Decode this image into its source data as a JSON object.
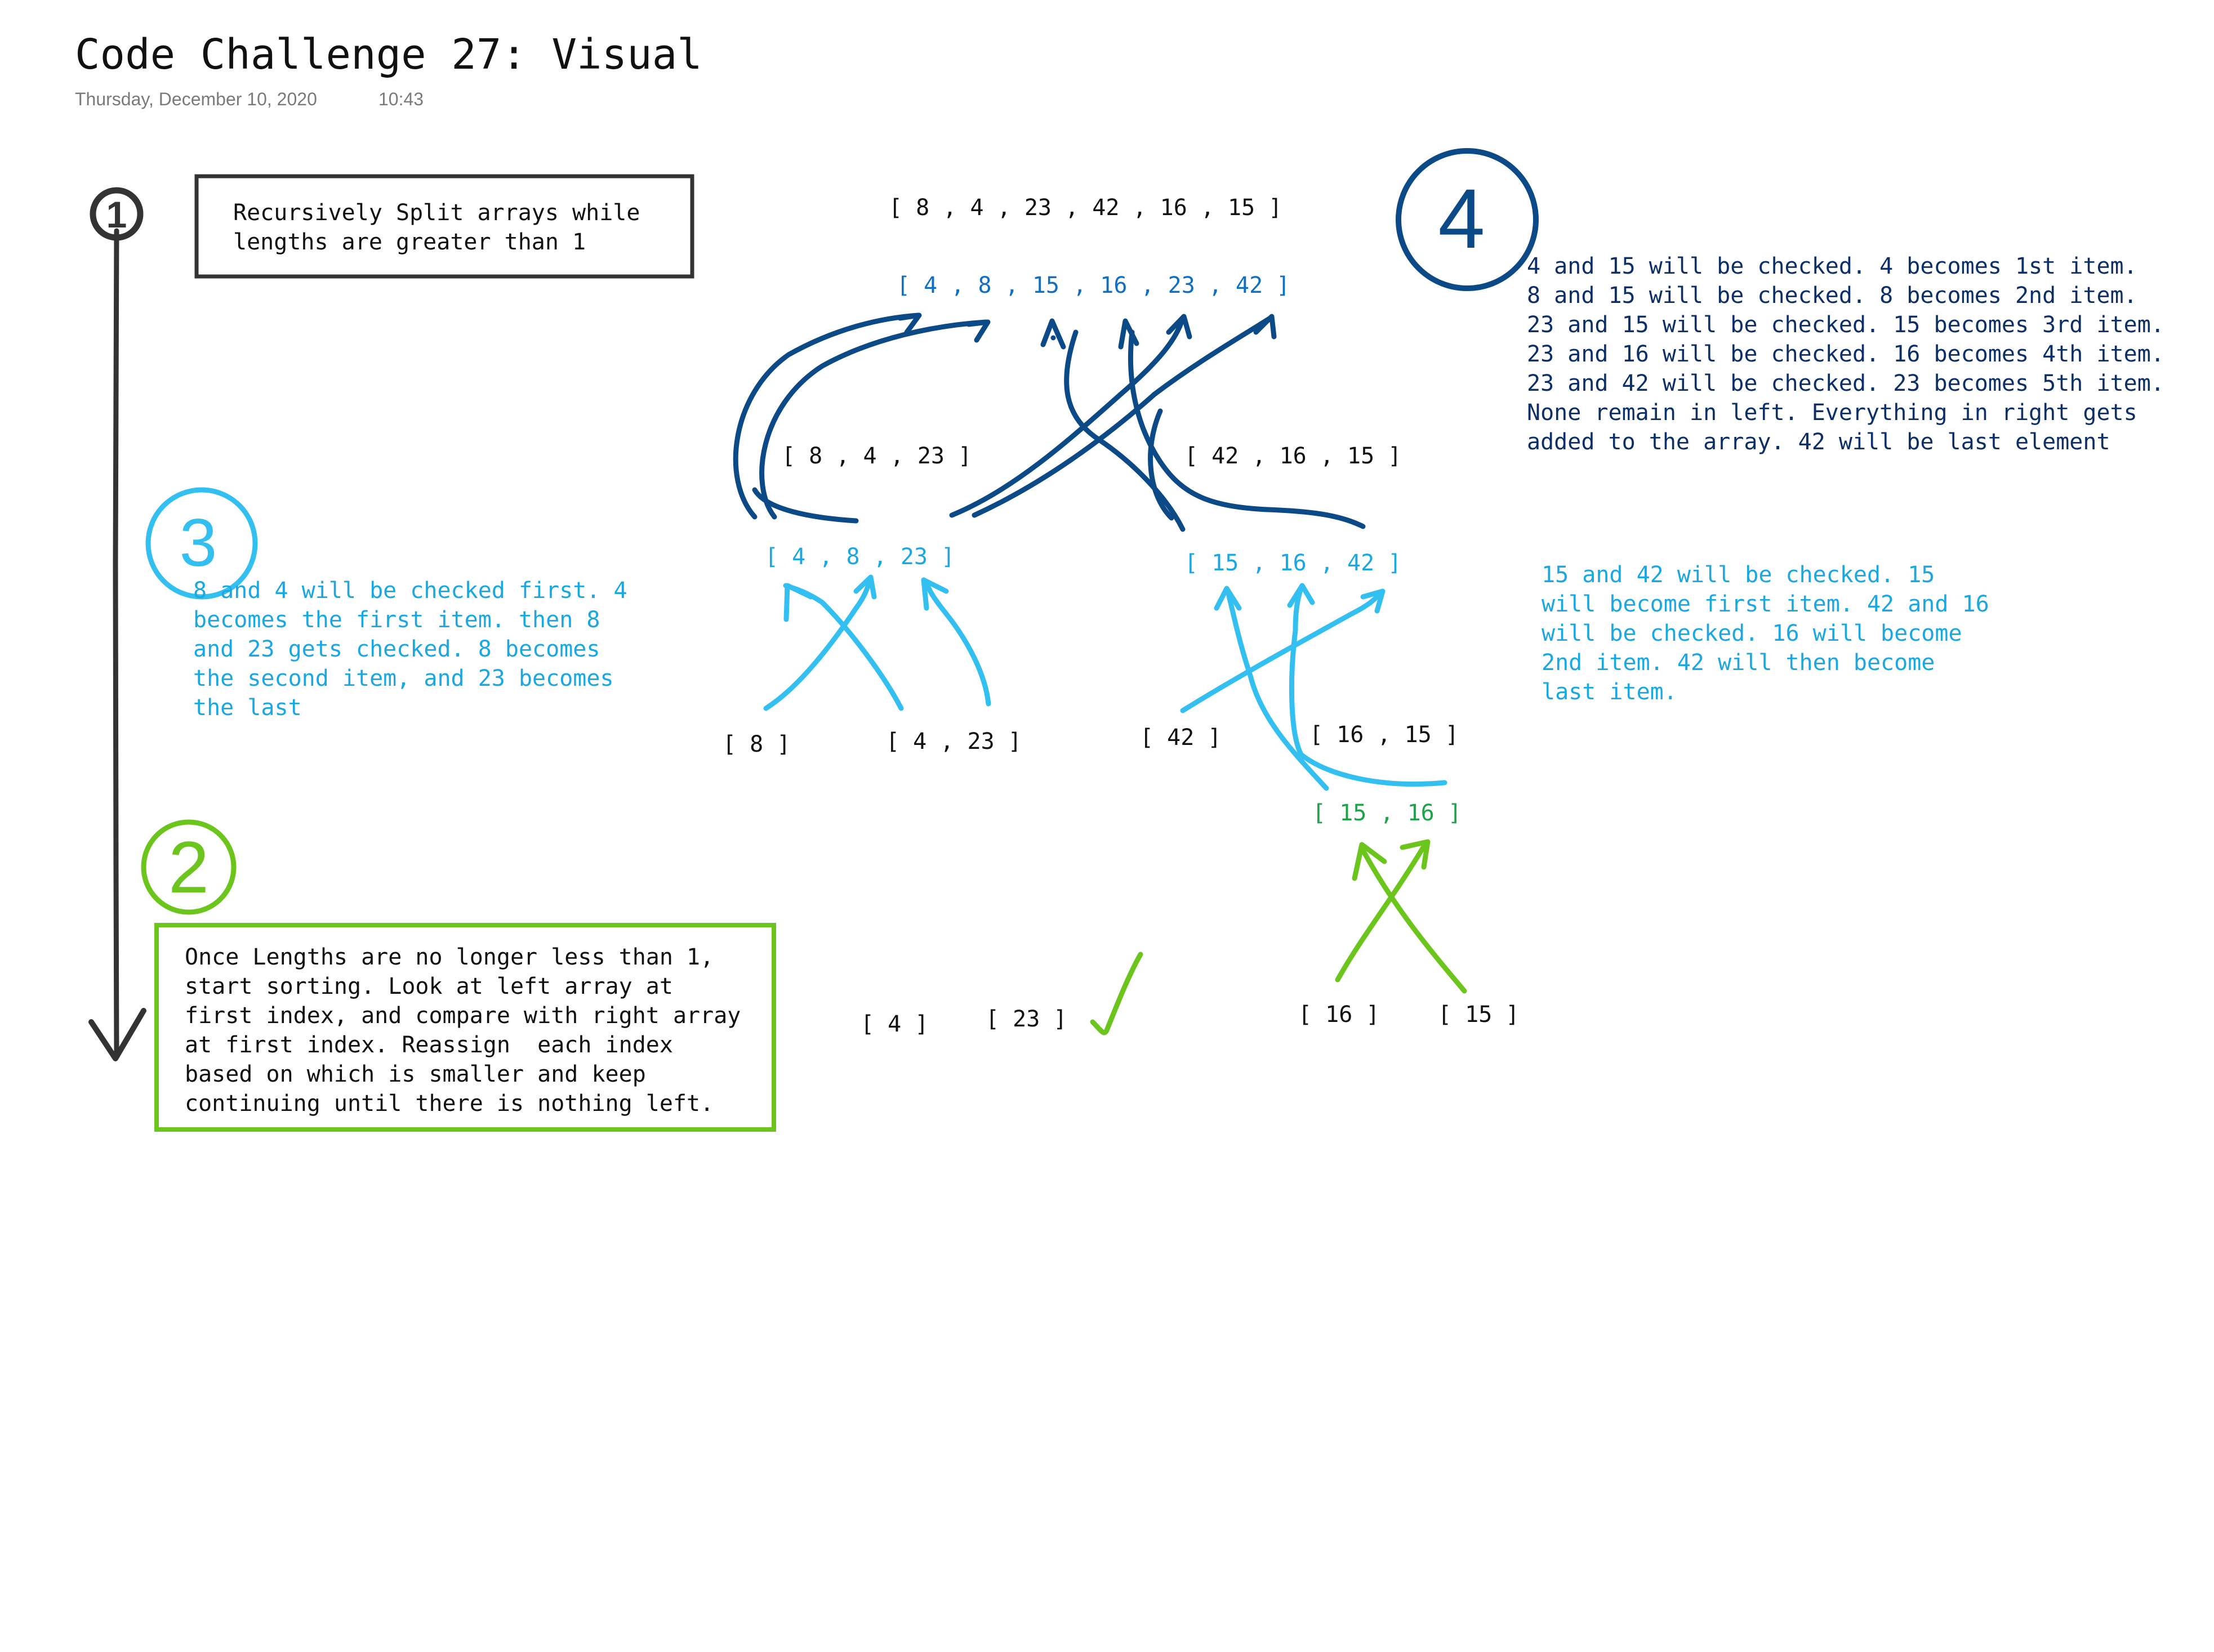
{
  "page": {
    "title": "Code Challenge 27: Visual",
    "date": "Thursday, December 10, 2020",
    "time": "10:43"
  },
  "colors": {
    "black": "#1a1a1a",
    "step1": "#333333",
    "step2": "#6cc51c",
    "step3": "#33c0f0",
    "step4": "#0b4a86",
    "step3_text": "#1ba7e0",
    "step4_text": "#0b2f66",
    "sorted_blue": "#0f6fc0",
    "sorted_green": "#1ea34b"
  },
  "step1": {
    "number_label": "1",
    "note_lines": [
      "Recursively Split arrays while",
      "lengths are greater than 1"
    ]
  },
  "step2": {
    "number_label": "2",
    "note_lines": [
      "Once Lengths are no longer less than 1,",
      "start sorting. Look at left array at",
      "first index, and compare with right array",
      "at first index. Reassign  each index",
      "based on which is smaller and keep",
      "continuing until there is nothing left."
    ]
  },
  "step3": {
    "number_label": "3",
    "left_note_lines": [
      "8 and 4 will be checked first. 4",
      "becomes the first item. then 8",
      "and 23 gets checked. 8 becomes",
      "the second item, and 23 becomes",
      "the last"
    ],
    "right_note_lines": [
      "15 and 42 will be checked. 15",
      "will become first item. 42 and 16",
      "will be checked. 16 will become",
      "2nd item. 42 will then become",
      "last item."
    ]
  },
  "step4": {
    "number_label": "4",
    "note_lines": [
      "4 and 15 will be checked. 4 becomes 1st item.",
      "8 and 15 will be checked. 8 becomes 2nd item.",
      "23 and 15 will be checked. 15 becomes 3rd item.",
      "23 and 16 will be checked. 16 becomes 4th item.",
      "23 and 42 will be checked. 23 becomes 5th item.",
      "None remain in left. Everything in right gets",
      "added to the array. 42 will be last element"
    ]
  },
  "arrays": {
    "original": "[ 8 , 4 , 23 , 42 , 16 , 15 ]",
    "sorted": "[ 4 , 8 , 15 , 16 , 23 , 42 ]",
    "left_half": "[ 8 , 4 , 23 ]",
    "right_half": "[ 42 , 16 , 15 ]",
    "left_sorted": "[ 4 , 8 , 23 ]",
    "right_sorted": "[ 15 , 16 , 42 ]",
    "single_8": "[ 8 ]",
    "pair_4_23": "[ 4 , 23 ]",
    "single_42": "[ 42 ]",
    "pair_16_15": "[ 16 , 15 ]",
    "sorted_15_16": "[ 15 , 16 ]",
    "single_4": "[ 4 ]",
    "single_23": "[ 23 ]",
    "single_16": "[ 16 ]",
    "single_15": "[ 15 ]"
  }
}
